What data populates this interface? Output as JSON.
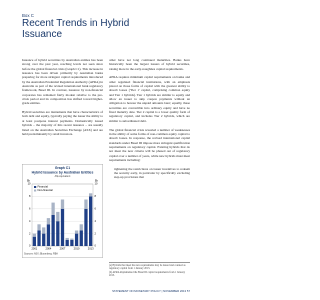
{
  "header": {
    "label": "Box C",
    "title": "Recent Trends in Hybrid Issuance"
  },
  "left_paragraphs": [
    "Issuance of hybrid securities by Australian entities has been strong over the past year, reaching levels not seen since before the global financial crisis (Graph C1). This increase in issuance has been driven primarily by Australian banks preparing for more stringent capital requirements introduced by the Australian Prudential Regulation Authority (APRA) in Australia as part of the revised international bank regulatory framework, Basel III. In contrast, issuance by non-financial corporates has remained fairly modest relative to the pre-crisis period and its composition has shifted toward higher-grade entities.",
    "Hybrid securities are instruments that have characteristics of both debt and equity, typically paying the issuer the ability to at least postpone interest payments. Domestically issued hybrids – the majority of this recent issuance – are usually listed on the Australian Securities Exchange (ASX) and are held predominantly by retail investors."
  ],
  "chart_data": {
    "type": "bar",
    "stacked": true,
    "label": "Graph C1",
    "title": "Hybrid Issuance by Australian Entities",
    "subtitle": "A$ equivalent",
    "unit": "$b",
    "categories": [
      "2001",
      null,
      null,
      "2004",
      null,
      null,
      "2007",
      null,
      null,
      "2010",
      null,
      null,
      "2013"
    ],
    "series": [
      {
        "name": "Financial",
        "color": "#1f3f86",
        "values": [
          1.5,
          2.5,
          2,
          3.5,
          5,
          4,
          6,
          1,
          1,
          2,
          2.5,
          6,
          8
        ]
      },
      {
        "name": "Non-financial",
        "color": "#a9b4c6",
        "values": [
          0.5,
          1,
          1,
          1,
          2,
          1.5,
          1.5,
          0.3,
          0.2,
          0.5,
          1,
          1.5,
          0.5
        ]
      }
    ],
    "ylim": [
      0,
      10
    ],
    "yticks": [
      0,
      2,
      4,
      6,
      8,
      10
    ],
    "legend": "top-left",
    "source": "Sources: ASX; Bloomberg; RBA"
  },
  "right_paragraphs": [
    "other have not long continued maturities. Banks have historically been the largest issuers of hybrid securities, raising more in the early-noughties capital requirements.",
    "APRA requires minimum capital requirements on banks and other regulated financial institutions, with an emphasis placed on those forms of capital with the greatest ability to absorb losses ('Tier 1' capital, comprising common equity and Tier 1 hybrids). Tier 1 hybrids are similar to equity and allow an issuer to skip coupon payments without an obligation to honour the unpaid amounts later; equally, these securities are convertible into ordinary equity and have no fixed maturity date. Tier 2 capital is a lower quality form of regulatory capital, and includes Tier 2 hybrids, which are similar to subordinated debt.",
    "The global financial crisis revealed a number of weaknesses in the ability of some forms of non-common equity capital to absorb losses. In response, the revised international capital standards under Basel III impose more stringent qualification requirements on regulatory capital. Existing hybrids that do not meet the new criteria will be phased out of regulatory capital over a number of years, while new hybrids must meet requirements including:"
  ],
  "bullets": [
    "tightening the restrictions on issuer incentives to redeem the security early, in particular by specifically excluding step-up provisions that"
  ],
  "notes": [
    "(a) Hybrids that meet the new requirements may be issued and counted as regulatory capital from 1 January 2013.",
    "(b) APRA implemented the Basel III capital requirements from 1 January 2013."
  ],
  "footer": "STATEMENT ON MONETARY POLICY | NOVEMBER 2013   57"
}
